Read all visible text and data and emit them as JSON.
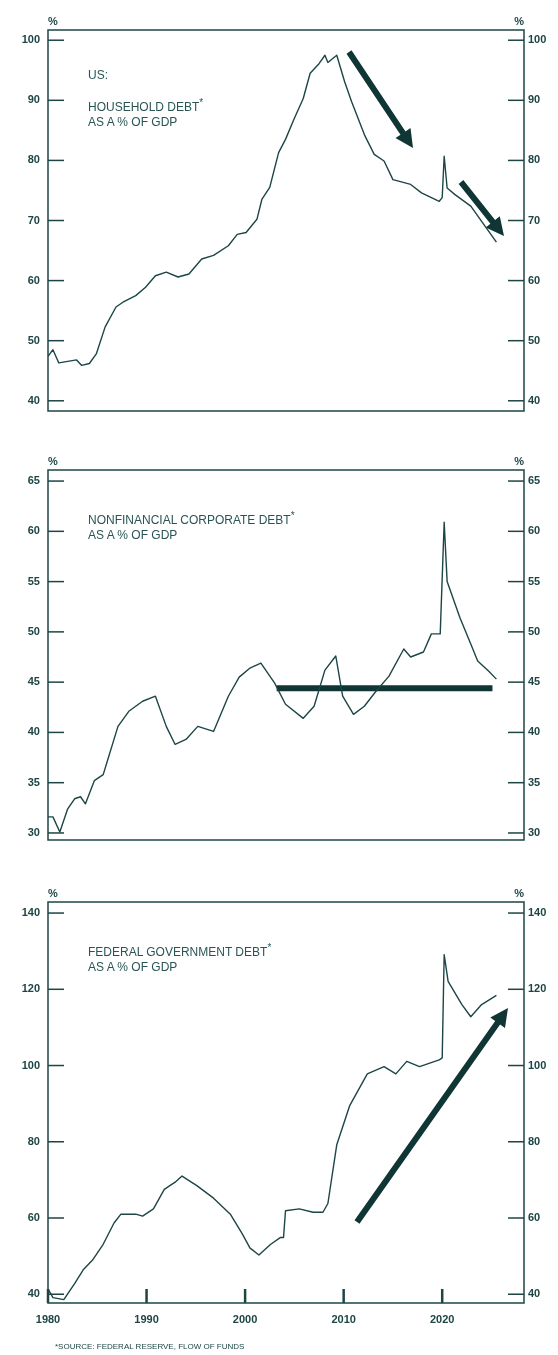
{
  "chart_data": [
    {
      "type": "line",
      "title": "US:",
      "subtitle": "HOUSEHOLD DEBT$^{*}$\nAS A % OF GDP",
      "ylabel": "%",
      "y2label": "%",
      "xlim": [
        1980,
        2028.3
      ],
      "ylim": [
        38.3,
        101.7
      ],
      "yticks": [
        40,
        50,
        60,
        70,
        80,
        90,
        100
      ],
      "y2lim": [
        38.3,
        101.7
      ],
      "y2ticks": [
        40,
        50,
        60,
        70,
        80,
        90,
        100
      ],
      "tick_labels": "y",
      "grid": false,
      "legend": false,
      "series": [
        {
          "color": "#1d4545",
          "x": [
            1980,
            1980.5,
            1981.1,
            1982.9,
            1983.4,
            1984.2,
            1984.9,
            1985.8,
            1986.9,
            1987.6,
            1988.9,
            1989.9,
            1990.9,
            1992.0,
            1993.2,
            1994.3,
            1995.6,
            1996.8,
            1998.3,
            1999.2,
            2000.1,
            2001.2,
            2001.7,
            2002.5,
            2003.4,
            2004.1,
            2005.0,
            2005.9,
            2006.6,
            2007.5,
            2008.1,
            2008.4,
            2009.3,
            2010.1,
            2010.8,
            2012.1,
            2013.1,
            2014.1,
            2015.0,
            2016.8,
            2017.9,
            2019.7,
            2020.0,
            2020.2,
            2020.5,
            2021.3,
            2022.9,
            2025.5
          ],
          "values": [
            47.4,
            48.5,
            46.3,
            46.8,
            45.9,
            46.2,
            47.8,
            52.3,
            55.6,
            56.4,
            57.5,
            58.9,
            60.8,
            61.4,
            60.6,
            61.1,
            63.6,
            64.2,
            65.8,
            67.7,
            68.0,
            70.2,
            73.5,
            75.5,
            81.3,
            83.5,
            87.0,
            90.3,
            94.5,
            96.1,
            97.5,
            96.3,
            97.5,
            93.1,
            89.8,
            84.3,
            81.0,
            79.9,
            76.8,
            76.0,
            74.6,
            73.2,
            73.8,
            80.7,
            75.4,
            74.3,
            72.4,
            66.4
          ]
        }
      ]
    },
    {
      "type": "line",
      "title": "NONFINANCIAL CORPORATE DEBT$^{*}$\nAS A % OF GDP",
      "ylabel": "%",
      "y2label": "%",
      "xlim": [
        1980,
        2028.3
      ],
      "ylim": [
        29.3,
        66.1
      ],
      "yticks": [
        30,
        35,
        40,
        45,
        50,
        55,
        60,
        65
      ],
      "y2lim": [
        29.3,
        66.1
      ],
      "y2ticks": [
        30,
        35,
        40,
        45,
        50,
        55,
        60,
        65
      ],
      "tick_labels": "y",
      "grid": false,
      "legend": false,
      "series": [
        {
          "color": "#1d4545",
          "x": [
            1980,
            1980.5,
            1981.2,
            1982.0,
            1982.7,
            1983.3,
            1983.8,
            1984.7,
            1985.6,
            1987.1,
            1988.2,
            1989.6,
            1990.9,
            1992.0,
            1992.9,
            1994.0,
            1995.2,
            1996.8,
            1998.3,
            1999.4,
            2000.5,
            2001.6,
            2003.0,
            2004.1,
            2005.9,
            2007.0,
            2008.1,
            2009.2,
            2009.9,
            2011.0,
            2012.1,
            2013.2,
            2014.6,
            2016.1,
            2016.8,
            2018.1,
            2018.9,
            2019.8,
            2020.2,
            2020.5,
            2021.8,
            2022.9,
            2023.6,
            2024.7,
            2025.5
          ],
          "values": [
            31.6,
            31.6,
            30.1,
            32.4,
            33.4,
            33.6,
            32.9,
            35.2,
            35.8,
            40.6,
            42.1,
            43.1,
            43.6,
            40.6,
            38.8,
            39.3,
            40.6,
            40.1,
            43.6,
            45.5,
            46.4,
            46.9,
            44.9,
            42.8,
            41.4,
            42.6,
            46.2,
            47.6,
            43.6,
            41.8,
            42.6,
            44.0,
            45.6,
            48.3,
            47.5,
            48.0,
            49.8,
            49.8,
            60.9,
            55.0,
            51.4,
            48.8,
            47.1,
            46.1,
            45.3
          ]
        },
        {
          "type": "line",
          "color": "#0f3535",
          "x": [
            2003.2,
            2025.1
          ],
          "values": [
            44.4,
            44.4
          ]
        }
      ]
    },
    {
      "type": "line",
      "title": "FEDERAL GOVERNMENT DEBT$^{*}$\nAS A % OF GDP",
      "ylabel": "%",
      "y2label": "%",
      "xlim": [
        1980,
        2028.3
      ],
      "xticks": [
        1980,
        1990,
        2000,
        2010,
        2020
      ],
      "ylim": [
        37.7,
        142.9
      ],
      "yticks": [
        40,
        60,
        80,
        100,
        120,
        140
      ],
      "y2lim": [
        37.7,
        142.9
      ],
      "y2ticks": [
        40,
        60,
        80,
        100,
        120,
        140
      ],
      "grid": false,
      "legend": false,
      "annotations": [
        "*SOURCE: FEDERAL RESERVE, FLOW OF FUNDS"
      ],
      "series": [
        {
          "color": "#1d4545",
          "x": [
            1980,
            1980.5,
            1981.6,
            1982.7,
            1983.6,
            1984.5,
            1985.6,
            1986.7,
            1987.4,
            1988.9,
            1989.6,
            1990.7,
            1991.8,
            1992.9,
            1993.6,
            1995.1,
            1996.8,
            1998.5,
            1999.7,
            2000.5,
            2001.4,
            2002.6,
            2003.6,
            2003.9,
            2004.1,
            2005.5,
            2006.9,
            2007.9,
            2008.4,
            2009.3,
            2010.6,
            2012.4,
            2014.1,
            2015.3,
            2016.4,
            2017.7,
            2019.7,
            2020.0,
            2020.2,
            2020.6,
            2022.0,
            2022.9,
            2024.0,
            2025.5
          ],
          "values": [
            41.4,
            39.1,
            38.6,
            42.8,
            46.5,
            48.9,
            53.1,
            58.7,
            61.0,
            61.0,
            60.5,
            62.4,
            67.5,
            69.4,
            71.0,
            68.5,
            65.2,
            61.0,
            55.9,
            52.1,
            50.3,
            53.1,
            54.9,
            54.9,
            61.9,
            62.4,
            61.5,
            61.5,
            63.8,
            79.2,
            89.4,
            97.8,
            99.7,
            97.8,
            101.1,
            99.7,
            101.5,
            102.0,
            129.1,
            122.1,
            116.0,
            112.8,
            116.0,
            118.4
          ]
        }
      ]
    }
  ]
}
